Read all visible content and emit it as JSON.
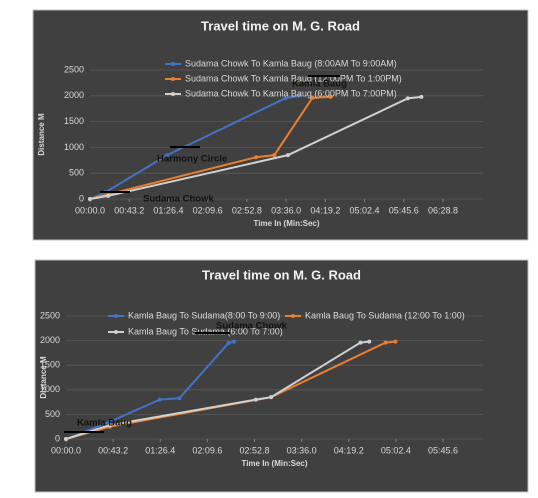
{
  "chart_data": [
    {
      "type": "line",
      "title": "Travel time on M. G. Road",
      "x_label": "Time In (Min:Sec)",
      "y_label": "Distance M",
      "xlim": [
        0,
        388.8
      ],
      "ylim": [
        0,
        2500
      ],
      "xticks": [
        {
          "value": 0,
          "label": "00:00.0"
        },
        {
          "value": 43.2,
          "label": "00:43.2"
        },
        {
          "value": 86.4,
          "label": "01:26.4"
        },
        {
          "value": 129.6,
          "label": "02:09.6"
        },
        {
          "value": 172.8,
          "label": "02:52.8"
        },
        {
          "value": 216,
          "label": "03:36.0"
        },
        {
          "value": 259.2,
          "label": "04:19.2"
        },
        {
          "value": 302.4,
          "label": "05:02.4"
        },
        {
          "value": 345.6,
          "label": "05:45.6"
        },
        {
          "value": 388.8,
          "label": "06:28.8"
        }
      ],
      "yticks": [
        0,
        500,
        1000,
        1500,
        2000,
        2500
      ],
      "grid": true,
      "series": [
        {
          "name": "Sudama Chowk To Kamla Baug (8:00AM To 9:00AM)",
          "color": "#4472c4",
          "x": [
            0,
            17,
            85,
            215,
            230
          ],
          "values": [
            0,
            130,
            850,
            1950,
            2000
          ]
        },
        {
          "name": "Sudama Chowk To Kamla Baug (12:00PM To 1:00PM)",
          "color": "#ed7d31",
          "x": [
            0,
            20,
            183,
            203,
            245,
            265
          ],
          "values": [
            0,
            90,
            810,
            850,
            1960,
            1980
          ]
        },
        {
          "name": "Sudama Chowk To Kamla Baug (6:00PM To 7:00PM)",
          "color": "#d0d0d0",
          "x": [
            0,
            20,
            218,
            350,
            365
          ],
          "values": [
            0,
            60,
            850,
            1950,
            1980
          ]
        }
      ],
      "annotations": [
        "Sudama Chowk",
        "Harmony Circle",
        "Kamla Baug"
      ]
    },
    {
      "type": "line",
      "title": "Travel time on M. G. Road",
      "x_label": "Time In (Min:Sec)",
      "y_label": "Distance M",
      "xlim": [
        0,
        345.6
      ],
      "ylim": [
        0,
        2500
      ],
      "xticks": [
        {
          "value": 0,
          "label": "00:00.0"
        },
        {
          "value": 43.2,
          "label": "00:43.2"
        },
        {
          "value": 86.4,
          "label": "01:26.4"
        },
        {
          "value": 129.6,
          "label": "02:09.6"
        },
        {
          "value": 172.8,
          "label": "02:52.8"
        },
        {
          "value": 216,
          "label": "03:36.0"
        },
        {
          "value": 259.2,
          "label": "04:19.2"
        },
        {
          "value": 302.4,
          "label": "05:02.4"
        },
        {
          "value": 345.6,
          "label": "05:45.6"
        }
      ],
      "yticks": [
        0,
        500,
        1000,
        1500,
        2000,
        2500
      ],
      "grid": true,
      "series": [
        {
          "name": "Kamla Baug To Sudama(8:00 To 9:00)",
          "color": "#4472c4",
          "x": [
            0,
            40,
            86,
            104,
            149,
            154
          ],
          "values": [
            0,
            350,
            800,
            830,
            1950,
            1980
          ]
        },
        {
          "name": "Kamla Baug To Sudama (12:00 To 1:00)",
          "color": "#ed7d31",
          "x": [
            0,
            40,
            188,
            293,
            302
          ],
          "values": [
            0,
            250,
            850,
            1960,
            1980
          ]
        },
        {
          "name": "Kamla Baug To Sudama (6:00 To 7:00)",
          "color": "#d0d0d0",
          "x": [
            0,
            40,
            174,
            188,
            270,
            278
          ],
          "values": [
            0,
            280,
            800,
            850,
            1960,
            1980
          ]
        }
      ],
      "annotations": [
        "Sudama Chowk",
        "Kamla Baug"
      ]
    }
  ]
}
